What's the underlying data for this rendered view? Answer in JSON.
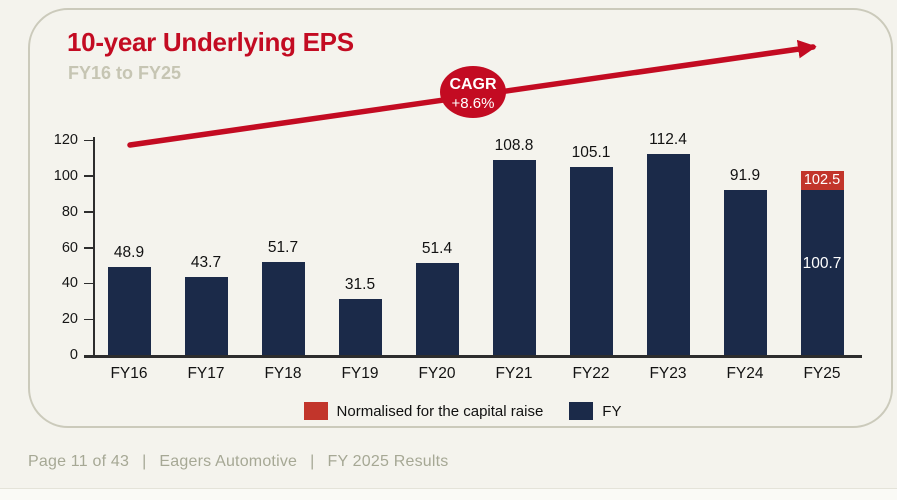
{
  "theme": {
    "red": "#c30b22",
    "brick": "#c2352b",
    "navy": "#1b2a49",
    "page_bg": "#f4f3ed",
    "border_olive": "#cbcabb",
    "muted_olive": "#c6c5b3",
    "footer_text": "#a6a895",
    "axis": "#2d2d2d"
  },
  "chart_data": {
    "type": "bar",
    "title": "10-year Underlying EPS",
    "subtitle": "FY16 to FY25",
    "categories": [
      "FY16",
      "FY17",
      "FY18",
      "FY19",
      "FY20",
      "FY21",
      "FY22",
      "FY23",
      "FY24",
      "FY25"
    ],
    "series": [
      {
        "name": "FY",
        "color": "#1b2a49",
        "values": [
          48.9,
          43.7,
          51.7,
          31.5,
          51.4,
          108.8,
          105.1,
          112.4,
          91.9,
          100.7
        ]
      },
      {
        "name": "Normalised for the capital raise",
        "color": "#c2352b",
        "values": [
          null,
          null,
          null,
          null,
          null,
          null,
          null,
          null,
          null,
          102.5
        ]
      }
    ],
    "annotation": {
      "line1": "CAGR",
      "line2": "+8.6%"
    },
    "xlabel": "",
    "ylabel": "",
    "ylim": [
      0,
      120
    ],
    "yticks": [
      0,
      20,
      40,
      60,
      80,
      100,
      120
    ],
    "grid": false,
    "legend_position": "bottom"
  },
  "legend": {
    "items": [
      {
        "label": "Normalised for the capital raise",
        "color": "#c2352b"
      },
      {
        "label": "FY",
        "color": "#1b2a49"
      }
    ]
  },
  "footer": {
    "page": "Page 11 of 43",
    "separator": "|",
    "company": "Eagers Automotive",
    "results": "FY 2025 Results"
  }
}
